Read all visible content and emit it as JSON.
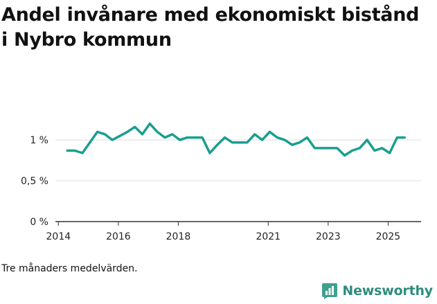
{
  "title": "Andel invånare med ekonomiskt bistånd i Nybro kommun",
  "footnote": "Tre månaders medelvärden.",
  "brand": {
    "name": "Newsworthy",
    "color": "#2e8c7e",
    "logo_icon": "bar-chart-icon"
  },
  "colors": {
    "line": "#1a9e8f",
    "grid": "#dddddd",
    "axis": "#333333"
  },
  "chart_data": {
    "type": "line",
    "title": "Andel invånare med ekonomiskt bistånd i Nybro kommun",
    "xlabel": "",
    "ylabel": "",
    "x_ticks": [
      2014,
      2016,
      2018,
      2021,
      2023,
      2025
    ],
    "y_ticks": [
      {
        "value": 0,
        "label": "0 %"
      },
      {
        "value": 0.5,
        "label": "0,5 %"
      },
      {
        "value": 1,
        "label": "1 %"
      }
    ],
    "xlim": [
      2013.9,
      2026.1
    ],
    "ylim": [
      0,
      1.4
    ],
    "grid": true,
    "series": [
      {
        "x": [
          2014.3,
          2014.55,
          2014.8,
          2015.05,
          2015.3,
          2015.55,
          2015.8,
          2016.05,
          2016.3,
          2016.55,
          2016.8,
          2017.05,
          2017.3,
          2017.55,
          2017.8,
          2018.05,
          2018.3,
          2018.55,
          2018.8,
          2019.05,
          2019.3,
          2019.55,
          2019.8,
          2020.05,
          2020.3,
          2020.55,
          2020.8,
          2021.05,
          2021.3,
          2021.55,
          2021.8,
          2022.05,
          2022.3,
          2022.55,
          2022.8,
          2023.05,
          2023.3,
          2023.55,
          2023.8,
          2024.05,
          2024.3,
          2024.55,
          2024.8,
          2025.05,
          2025.3,
          2025.55
        ],
        "y": [
          0.87,
          0.87,
          0.84,
          0.97,
          1.1,
          1.07,
          1.0,
          1.05,
          1.1,
          1.16,
          1.07,
          1.2,
          1.1,
          1.03,
          1.07,
          1.0,
          1.03,
          1.03,
          1.03,
          0.84,
          0.94,
          1.03,
          0.97,
          0.97,
          0.97,
          1.07,
          1.0,
          1.1,
          1.03,
          1.0,
          0.94,
          0.97,
          1.03,
          0.9,
          0.9,
          0.9,
          0.9,
          0.81,
          0.87,
          0.9,
          1.0,
          0.87,
          0.9,
          0.84,
          1.03,
          1.03
        ]
      }
    ]
  }
}
